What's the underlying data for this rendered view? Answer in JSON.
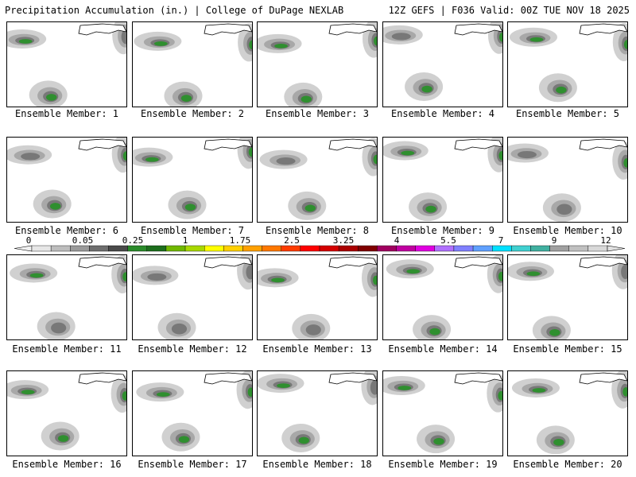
{
  "header": {
    "left": "Precipitation Accumulation (in.) | College of DuPage NEXLAB",
    "right": "12Z GEFS | F036 Valid: 00Z TUE NOV 18 2025"
  },
  "member_prefix": "Ensemble Member: ",
  "members": [
    1,
    2,
    3,
    4,
    5,
    6,
    7,
    8,
    9,
    10,
    11,
    12,
    13,
    14,
    15,
    16,
    17,
    18,
    19,
    20
  ],
  "colorbar": {
    "labels": [
      "0",
      "0.05",
      "0.25",
      "1",
      "1.75",
      "2.5",
      "3.25",
      "4",
      "5.5",
      "7",
      "9",
      "12"
    ],
    "colors": [
      "#e6e6e6",
      "#bdbdbd",
      "#9a9a9a",
      "#6e6e6e",
      "#4a4a4a",
      "#2a8a2a",
      "#1d6e1d",
      "#70b800",
      "#a8d800",
      "#ffff00",
      "#ffd000",
      "#ffa000",
      "#ff7800",
      "#ff3c00",
      "#ff0000",
      "#d40000",
      "#aa0000",
      "#800000",
      "#a00060",
      "#c000a0",
      "#e000e0",
      "#b070ff",
      "#8080ff",
      "#60a0ff",
      "#00e0ff",
      "#40d0d0",
      "#40b0a0",
      "#a0a0a0",
      "#c0c0c0",
      "#d8d8d8"
    ]
  },
  "precip_colors": {
    "light": "#d0d0d0",
    "medium": "#a8a8a8",
    "heavy": "#787878",
    "green": "#2f8f2f"
  }
}
